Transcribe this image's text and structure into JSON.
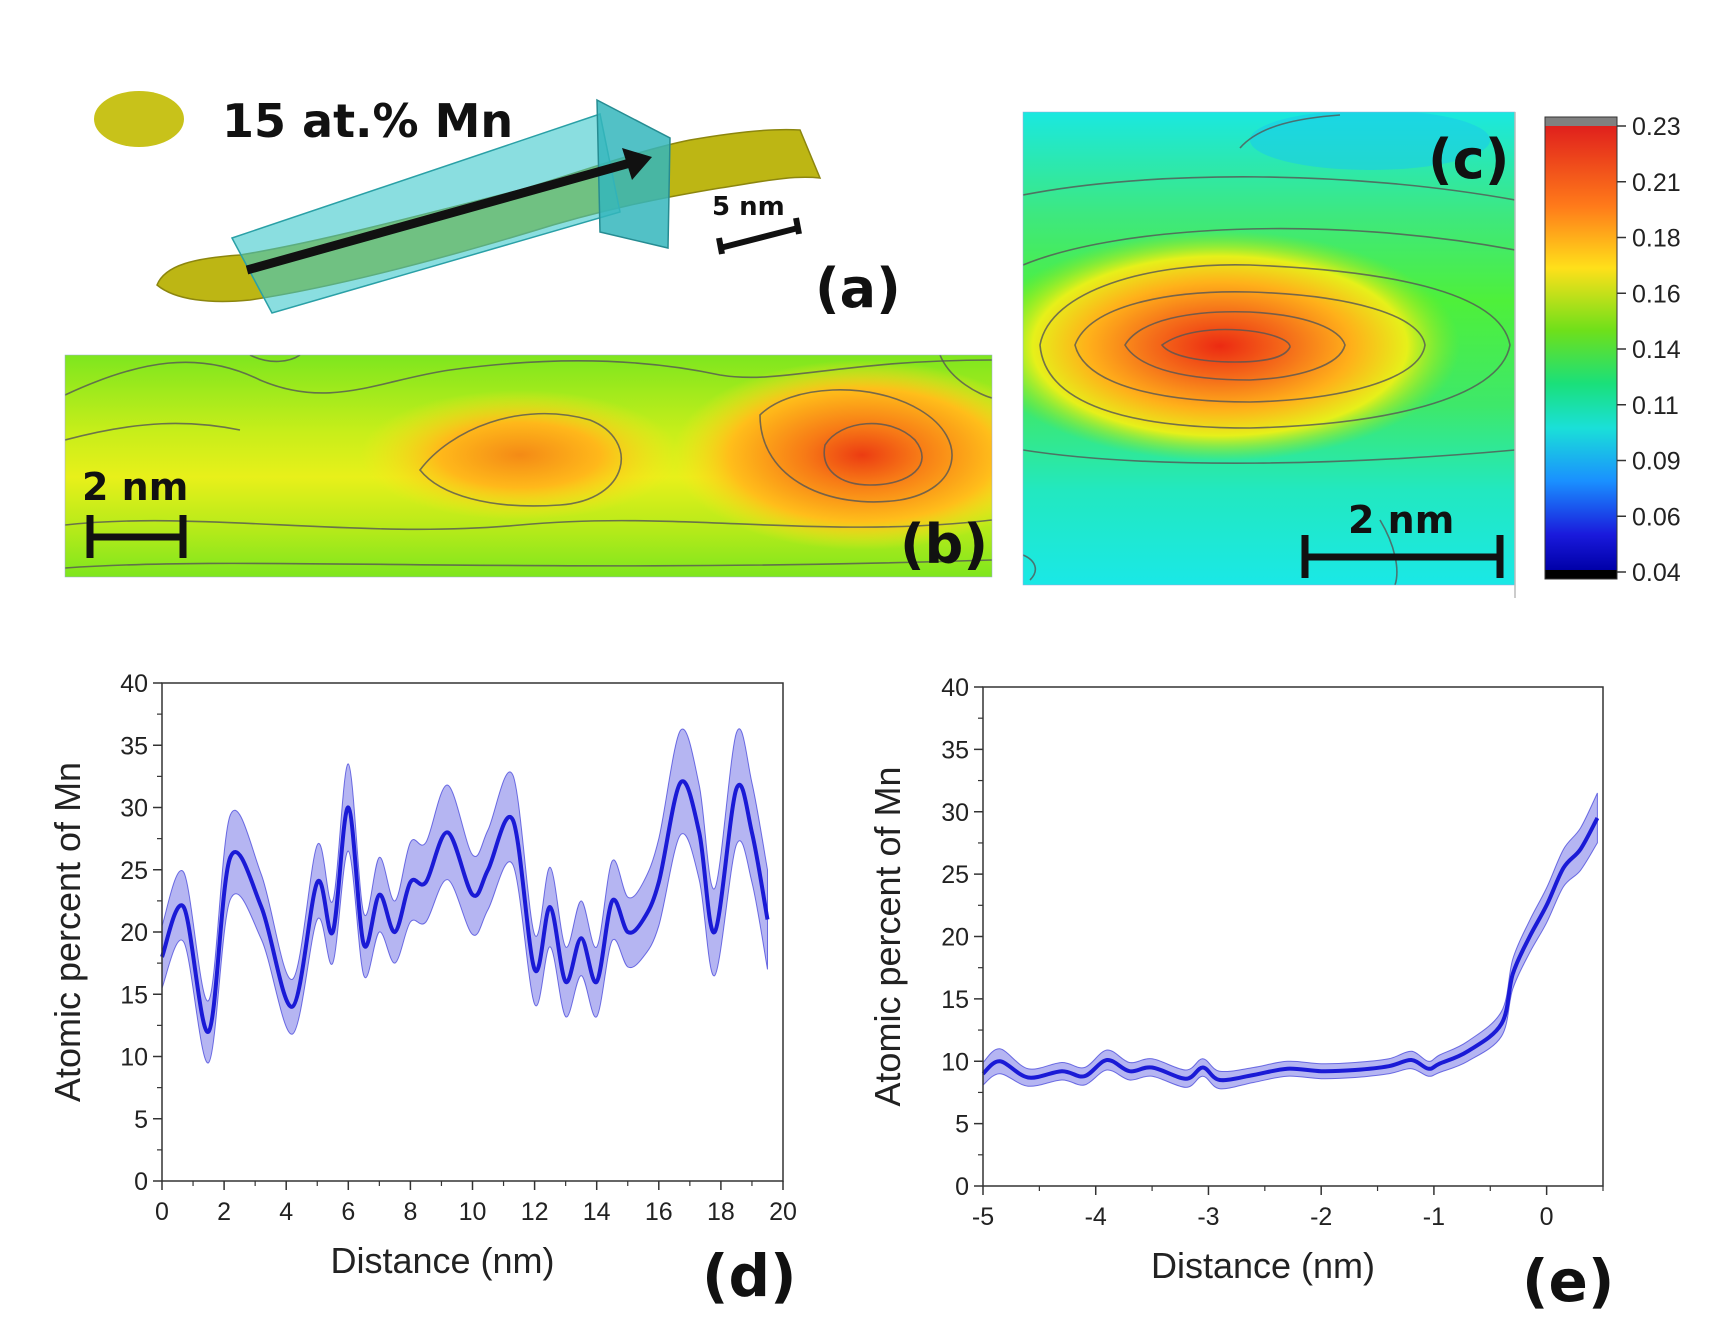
{
  "panel_a": {
    "legend": "15 at.% Mn",
    "scale": "5 nm",
    "label": "(a)",
    "isosurface_color": "#c8c21a",
    "slab_color": "#3cc8cc"
  },
  "panel_b": {
    "scale": "2 nm",
    "label": "(b)"
  },
  "panel_c": {
    "scale": "2 nm",
    "label": "(c)"
  },
  "colorbar": {
    "ticks": [
      "0.23",
      "0.21",
      "0.18",
      "0.16",
      "0.14",
      "0.11",
      "0.09",
      "0.06",
      "0.04"
    ],
    "colors": [
      "#808080",
      "#e0201c",
      "#ff8c1a",
      "#ffe01a",
      "#6fe01a",
      "#1ae01a",
      "#1ae0d8",
      "#1a70ff",
      "#0000c8",
      "#000000"
    ]
  },
  "chart_data": [
    {
      "type": "line",
      "label": "(d)",
      "xlabel": "Distance (nm)",
      "ylabel": "Atomic percent of Mn",
      "xlim": [
        0,
        20
      ],
      "ylim": [
        0,
        40
      ],
      "xticks": [
        "0",
        "2",
        "4",
        "6",
        "8",
        "10",
        "12",
        "14",
        "16",
        "18",
        "20"
      ],
      "yticks": [
        "0",
        "5",
        "10",
        "15",
        "20",
        "25",
        "30",
        "35",
        "40"
      ],
      "line_color": "#1a1ad6",
      "band_color": "#a8a8f0",
      "x": [
        0,
        0.7,
        1.5,
        2.2,
        3.2,
        4.2,
        5.0,
        5.5,
        6.0,
        6.5,
        7.0,
        7.5,
        8.0,
        8.5,
        9.2,
        10.0,
        10.5,
        11.3,
        12.0,
        12.5,
        13.0,
        13.5,
        14.0,
        14.5,
        15.0,
        15.5,
        16.0,
        16.7,
        17.3,
        17.8,
        18.5,
        19.0,
        19.5
      ],
      "y": [
        18,
        22,
        12,
        26,
        22,
        14,
        24,
        20,
        30,
        19,
        23,
        20,
        24,
        24,
        28,
        23,
        25,
        29,
        17,
        22,
        16,
        19.5,
        16,
        22.5,
        20,
        21,
        24,
        32,
        28,
        20,
        31.5,
        28,
        21
      ],
      "band": [
        2.5,
        2.8,
        2.5,
        3.4,
        2.6,
        2.2,
        3.0,
        2.5,
        3.5,
        2.5,
        3.0,
        2.5,
        3.2,
        3.2,
        3.8,
        3.2,
        3.2,
        3.6,
        2.8,
        3.2,
        2.8,
        3.0,
        2.8,
        3.2,
        2.8,
        3.0,
        3.5,
        4.2,
        3.8,
        3.5,
        4.5,
        4.0,
        4.0
      ]
    },
    {
      "type": "line",
      "label": "(e)",
      "xlabel": "Distance (nm)",
      "ylabel": "Atomic percent of Mn",
      "xlim": [
        -5,
        0.5
      ],
      "ylim": [
        0,
        40
      ],
      "xticks": [
        "-5",
        "-4",
        "-3",
        "-2",
        "-1",
        "0"
      ],
      "yticks": [
        "0",
        "5",
        "10",
        "15",
        "20",
        "25",
        "30",
        "35",
        "40"
      ],
      "line_color": "#1a1ad6",
      "band_color": "#a8a8f0",
      "x": [
        -5.0,
        -4.85,
        -4.6,
        -4.3,
        -4.1,
        -3.9,
        -3.7,
        -3.5,
        -3.2,
        -3.05,
        -2.9,
        -2.6,
        -2.3,
        -2.0,
        -1.7,
        -1.4,
        -1.2,
        -1.05,
        -0.95,
        -0.7,
        -0.4,
        -0.3,
        -0.15,
        0.0,
        0.15,
        0.3,
        0.45
      ],
      "y": [
        9,
        10,
        8.7,
        9.2,
        8.8,
        10.1,
        9.2,
        9.5,
        8.6,
        9.5,
        8.5,
        8.9,
        9.4,
        9.2,
        9.3,
        9.6,
        10.1,
        9.4,
        9.8,
        10.8,
        13,
        17,
        20,
        22.5,
        25.5,
        27,
        29.5
      ],
      "band": [
        0.9,
        1.0,
        0.7,
        0.7,
        0.7,
        0.8,
        0.7,
        0.7,
        0.7,
        0.7,
        0.7,
        0.6,
        0.6,
        0.6,
        0.6,
        0.6,
        0.7,
        0.6,
        0.7,
        0.8,
        1.0,
        1.2,
        1.3,
        1.4,
        1.5,
        1.7,
        2.0
      ]
    }
  ]
}
